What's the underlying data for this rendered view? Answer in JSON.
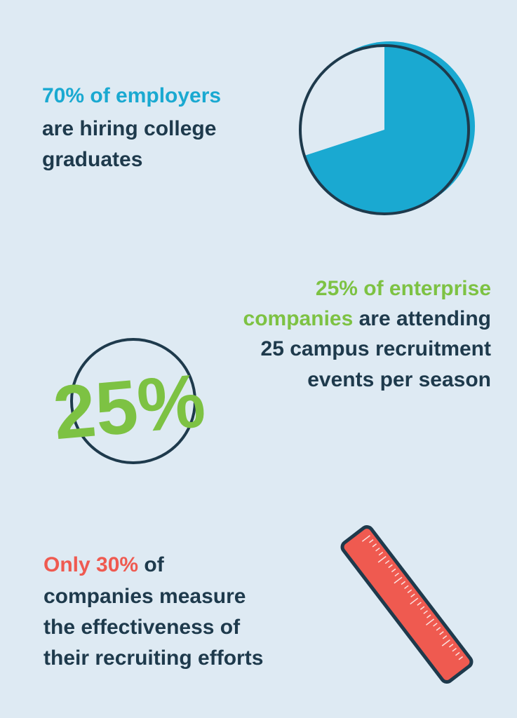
{
  "sections": [
    {
      "highlight": "70% of employers",
      "text_lines": [
        "are hiring college",
        "graduates"
      ],
      "pie_value": 70
    },
    {
      "highlight": "25% of enterprise",
      "highlight_2": "companies",
      "text": "are attending",
      "text_lines": [
        "25 campus recruitment",
        "events per season"
      ],
      "badge": "25%"
    },
    {
      "highlight": "Only 30%",
      "text": "of",
      "text_lines": [
        "companies measure",
        "the effectiveness of",
        "their recruiting efforts"
      ]
    }
  ]
}
